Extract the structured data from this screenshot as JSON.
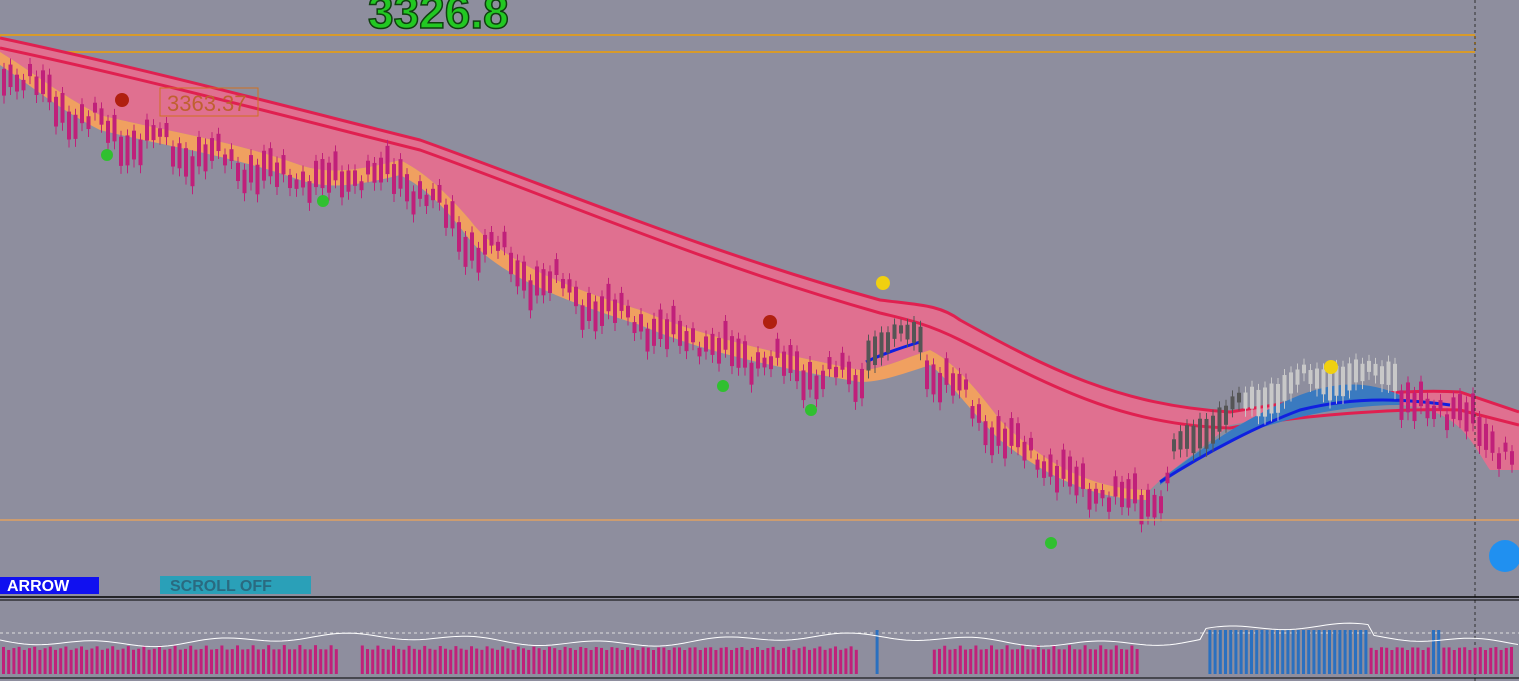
{
  "header": {
    "price": "3326.8"
  },
  "chart": {
    "price_label": "3363.37"
  },
  "toolbar": {
    "arrow": "ARROW",
    "scroll": "SCROLL OFF"
  }
}
